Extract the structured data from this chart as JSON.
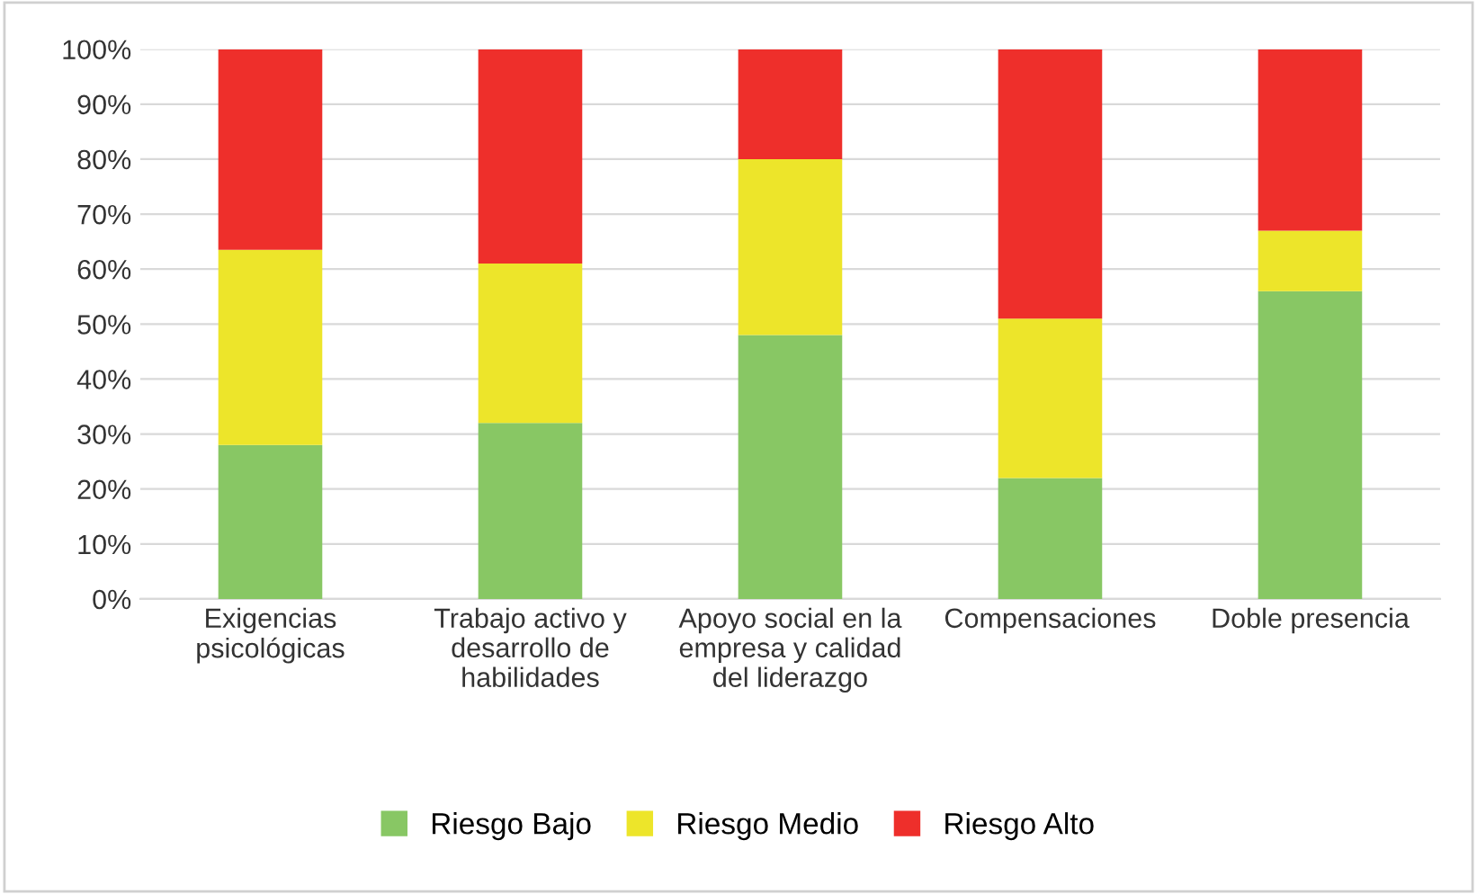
{
  "chart_data": {
    "type": "bar",
    "stacked": true,
    "categories": [
      "Exigencias\npsicológicas",
      "Trabajo activo y\ndesarrollo de\nhabilidades",
      "Apoyo social en la\nempresa y calidad\ndel liderazgo",
      "Compensaciones",
      "Doble presencia"
    ],
    "series": [
      {
        "name": "Riesgo Bajo",
        "color": "#88c764",
        "values": [
          28,
          32,
          48,
          22,
          56
        ]
      },
      {
        "name": "Riesgo Medio",
        "color": "#ede52a",
        "values": [
          35.5,
          29,
          32,
          29,
          11
        ]
      },
      {
        "name": "Riesgo Alto",
        "color": "#ee2f2b",
        "values": [
          36.5,
          39,
          20,
          49,
          33
        ]
      }
    ],
    "ylim": [
      0,
      100
    ],
    "yticks": [
      {
        "value": 0,
        "label": "0%"
      },
      {
        "value": 10,
        "label": "10%"
      },
      {
        "value": 20,
        "label": "20%"
      },
      {
        "value": 30,
        "label": "30%"
      },
      {
        "value": 40,
        "label": "40%"
      },
      {
        "value": 50,
        "label": "50%"
      },
      {
        "value": 60,
        "label": "60%"
      },
      {
        "value": 70,
        "label": "70%"
      },
      {
        "value": 80,
        "label": "80%"
      },
      {
        "value": 90,
        "label": "90%"
      },
      {
        "value": 100,
        "label": "100%"
      }
    ],
    "grid": "y",
    "legend": "bottom"
  }
}
